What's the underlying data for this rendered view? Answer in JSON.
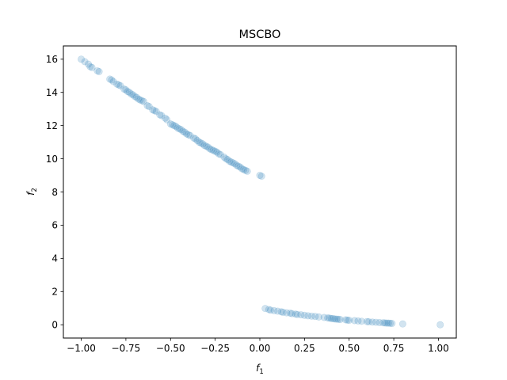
{
  "chart_data": {
    "type": "scatter",
    "title": "MSCBO",
    "xlabel_base": "f",
    "xlabel_sub": "1",
    "ylabel_base": "f",
    "ylabel_sub": "2",
    "xlim": [
      -1.1,
      1.1
    ],
    "ylim": [
      -0.8,
      16.8
    ],
    "xticks": [
      -1.0,
      -0.75,
      -0.5,
      -0.25,
      0.0,
      0.25,
      0.5,
      0.75,
      1.0
    ],
    "xtick_labels": [
      "−1.00",
      "−0.75",
      "−0.50",
      "−0.25",
      "0.00",
      "0.25",
      "0.50",
      "0.75",
      "1.00"
    ],
    "yticks": [
      0,
      2,
      4,
      6,
      8,
      10,
      12,
      14,
      16
    ],
    "ytick_labels": [
      "0",
      "2",
      "4",
      "6",
      "8",
      "10",
      "12",
      "14",
      "16"
    ],
    "grid": false,
    "marker_color": "#1f77b4",
    "marker_alpha": 0.2,
    "series": [
      {
        "points": [
          [
            -1.0,
            16.0
          ],
          [
            -0.98,
            15.85
          ],
          [
            -0.96,
            15.7
          ],
          [
            -0.95,
            15.55
          ],
          [
            -0.94,
            15.5
          ],
          [
            -0.91,
            15.3
          ],
          [
            -0.9,
            15.25
          ],
          [
            -0.84,
            14.8
          ],
          [
            -0.83,
            14.75
          ],
          [
            -0.82,
            14.65
          ],
          [
            -0.8,
            14.5
          ],
          [
            -0.79,
            14.45
          ],
          [
            -0.78,
            14.4
          ],
          [
            -0.76,
            14.2
          ],
          [
            -0.75,
            14.15
          ],
          [
            -0.74,
            14.05
          ],
          [
            -0.73,
            14.0
          ],
          [
            -0.72,
            13.9
          ],
          [
            -0.71,
            13.85
          ],
          [
            -0.7,
            13.75
          ],
          [
            -0.69,
            13.7
          ],
          [
            -0.68,
            13.6
          ],
          [
            -0.67,
            13.55
          ],
          [
            -0.66,
            13.5
          ],
          [
            -0.65,
            13.45
          ],
          [
            -0.63,
            13.2
          ],
          [
            -0.62,
            13.15
          ],
          [
            -0.6,
            12.95
          ],
          [
            -0.59,
            12.9
          ],
          [
            -0.58,
            12.85
          ],
          [
            -0.56,
            12.65
          ],
          [
            -0.55,
            12.6
          ],
          [
            -0.53,
            12.45
          ],
          [
            -0.52,
            12.35
          ],
          [
            -0.5,
            12.1
          ],
          [
            -0.49,
            12.05
          ],
          [
            -0.48,
            12.0
          ],
          [
            -0.47,
            11.95
          ],
          [
            -0.46,
            11.85
          ],
          [
            -0.45,
            11.8
          ],
          [
            -0.44,
            11.75
          ],
          [
            -0.43,
            11.65
          ],
          [
            -0.42,
            11.6
          ],
          [
            -0.41,
            11.5
          ],
          [
            -0.4,
            11.45
          ],
          [
            -0.39,
            11.4
          ],
          [
            -0.37,
            11.25
          ],
          [
            -0.36,
            11.2
          ],
          [
            -0.35,
            11.1
          ],
          [
            -0.34,
            11.0
          ],
          [
            -0.33,
            10.95
          ],
          [
            -0.32,
            10.9
          ],
          [
            -0.31,
            10.8
          ],
          [
            -0.3,
            10.75
          ],
          [
            -0.29,
            10.7
          ],
          [
            -0.28,
            10.6
          ],
          [
            -0.27,
            10.55
          ],
          [
            -0.26,
            10.5
          ],
          [
            -0.25,
            10.45
          ],
          [
            -0.24,
            10.4
          ],
          [
            -0.23,
            10.3
          ],
          [
            -0.22,
            10.25
          ],
          [
            -0.2,
            10.1
          ],
          [
            -0.19,
            10.0
          ],
          [
            -0.18,
            9.95
          ],
          [
            -0.17,
            9.85
          ],
          [
            -0.16,
            9.8
          ],
          [
            -0.15,
            9.75
          ],
          [
            -0.14,
            9.7
          ],
          [
            -0.13,
            9.6
          ],
          [
            -0.12,
            9.55
          ],
          [
            -0.11,
            9.5
          ],
          [
            -0.1,
            9.4
          ],
          [
            -0.09,
            9.35
          ],
          [
            -0.08,
            9.3
          ],
          [
            -0.07,
            9.25
          ],
          [
            0.0,
            9.0
          ],
          [
            0.01,
            8.95
          ],
          [
            0.03,
            0.98
          ],
          [
            0.05,
            0.92
          ],
          [
            0.06,
            0.88
          ],
          [
            0.08,
            0.85
          ],
          [
            0.1,
            0.82
          ],
          [
            0.12,
            0.78
          ],
          [
            0.13,
            0.75
          ],
          [
            0.15,
            0.72
          ],
          [
            0.17,
            0.7
          ],
          [
            0.18,
            0.67
          ],
          [
            0.2,
            0.64
          ],
          [
            0.21,
            0.62
          ],
          [
            0.23,
            0.6
          ],
          [
            0.25,
            0.57
          ],
          [
            0.27,
            0.54
          ],
          [
            0.29,
            0.52
          ],
          [
            0.31,
            0.5
          ],
          [
            0.33,
            0.47
          ],
          [
            0.36,
            0.44
          ],
          [
            0.38,
            0.41
          ],
          [
            0.39,
            0.4
          ],
          [
            0.4,
            0.38
          ],
          [
            0.41,
            0.37
          ],
          [
            0.42,
            0.35
          ],
          [
            0.43,
            0.34
          ],
          [
            0.44,
            0.33
          ],
          [
            0.45,
            0.32
          ],
          [
            0.48,
            0.3
          ],
          [
            0.49,
            0.28
          ],
          [
            0.5,
            0.27
          ],
          [
            0.53,
            0.25
          ],
          [
            0.55,
            0.23
          ],
          [
            0.57,
            0.21
          ],
          [
            0.6,
            0.19
          ],
          [
            0.61,
            0.18
          ],
          [
            0.63,
            0.16
          ],
          [
            0.65,
            0.15
          ],
          [
            0.67,
            0.13
          ],
          [
            0.69,
            0.12
          ],
          [
            0.7,
            0.11
          ],
          [
            0.71,
            0.1
          ],
          [
            0.72,
            0.1
          ],
          [
            0.73,
            0.09
          ],
          [
            0.74,
            0.08
          ],
          [
            0.8,
            0.05
          ],
          [
            1.01,
            0.0
          ]
        ]
      }
    ]
  }
}
